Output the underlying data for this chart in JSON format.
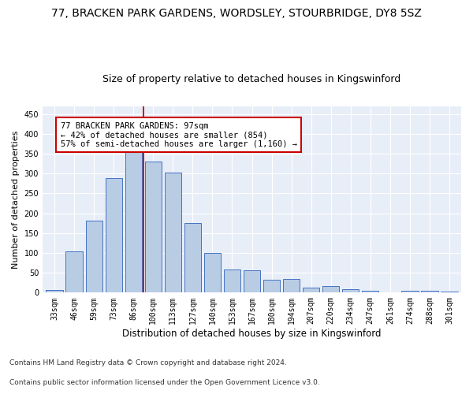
{
  "title1": "77, BRACKEN PARK GARDENS, WORDSLEY, STOURBRIDGE, DY8 5SZ",
  "title2": "Size of property relative to detached houses in Kingswinford",
  "xlabel": "Distribution of detached houses by size in Kingswinford",
  "ylabel": "Number of detached properties",
  "categories": [
    "33sqm",
    "46sqm",
    "59sqm",
    "73sqm",
    "86sqm",
    "100sqm",
    "113sqm",
    "127sqm",
    "140sqm",
    "153sqm",
    "167sqm",
    "180sqm",
    "194sqm",
    "207sqm",
    "220sqm",
    "234sqm",
    "247sqm",
    "261sqm",
    "274sqm",
    "288sqm",
    "301sqm"
  ],
  "values": [
    7,
    103,
    181,
    289,
    365,
    330,
    303,
    176,
    100,
    58,
    57,
    32,
    35,
    12,
    16,
    8,
    5,
    0,
    4,
    4,
    3
  ],
  "bar_color": "#b8cce4",
  "bar_edge_color": "#4472c4",
  "vline_color": "#cc0000",
  "annotation_text": "77 BRACKEN PARK GARDENS: 97sqm\n← 42% of detached houses are smaller (854)\n57% of semi-detached houses are larger (1,160) →",
  "annotation_box_color": "#ffffff",
  "annotation_box_edge": "#cc0000",
  "ylim": [
    0,
    470
  ],
  "yticks": [
    0,
    50,
    100,
    150,
    200,
    250,
    300,
    350,
    400,
    450
  ],
  "footnote1": "Contains HM Land Registry data © Crown copyright and database right 2024.",
  "footnote2": "Contains public sector information licensed under the Open Government Licence v3.0.",
  "plot_background": "#e8eef8",
  "title1_fontsize": 10,
  "title2_fontsize": 9,
  "xlabel_fontsize": 8.5,
  "ylabel_fontsize": 8,
  "tick_fontsize": 7,
  "footnote_fontsize": 6.5,
  "annotation_fontsize": 7.5
}
